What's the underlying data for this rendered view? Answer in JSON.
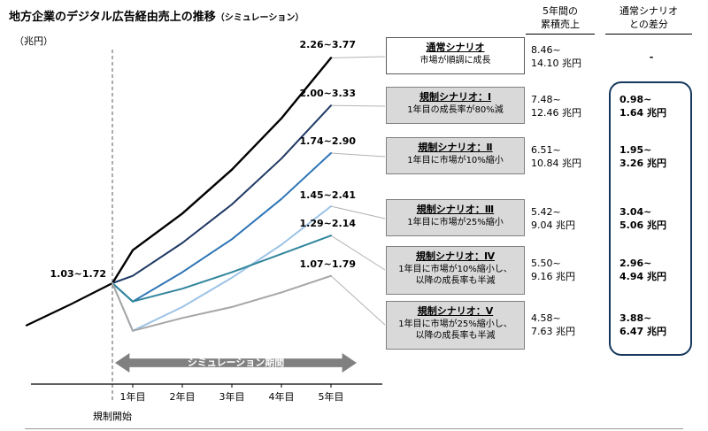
{
  "title": {
    "main": "地方企業のデジタル広告経由売上の推移",
    "sub": "（シミュレーション）"
  },
  "unit_label": "（兆円）",
  "x_axis": {
    "year_labels": [
      "1年目",
      "2年目",
      "3年目",
      "4年目",
      "5年目"
    ],
    "regulation_start_label": "規制開始"
  },
  "simulation_period_label": "シミュレーション期間",
  "table_headers": {
    "cumulative_line1": "5年間の",
    "cumulative_line2": "累積売上",
    "difference_line1": "通常シナリオ",
    "difference_line2": "との差分"
  },
  "chart_data": {
    "type": "line",
    "title": "地方企業のデジタル広告経由売上の推移（シミュレーション）",
    "ylabel": "兆円",
    "x_categories": [
      "規制開始",
      "1年目",
      "2年目",
      "3年目",
      "4年目",
      "5年目"
    ],
    "grid": false,
    "legend_position": "right-callout-boxes",
    "start_label": "1.03~1.72",
    "pre_history_values": [
      0.8,
      0.91,
      1.03
    ],
    "accent_frame_color": "#17375E",
    "series": [
      {
        "name": "通常シナリオ",
        "desc1": "市場が順調に成長",
        "end_label": "2.26~3.77",
        "cumulative_line1": "8.46~",
        "cumulative_line2": "14.10 兆円",
        "difference_line1": "-",
        "color": "#000000",
        "values_low": [
          1.03,
          1.21,
          1.41,
          1.65,
          1.93,
          2.26
        ]
      },
      {
        "name": "規制シナリオ：Ⅰ",
        "desc1": "1年目の成長率が80%減",
        "end_label": "2.00~3.33",
        "cumulative_line1": "7.48~",
        "cumulative_line2": "12.46 兆円",
        "difference_line1": "0.98~",
        "difference_line2": "1.64 兆円",
        "color": "#1F3864",
        "values_low": [
          1.03,
          1.07,
          1.25,
          1.46,
          1.71,
          2.0
        ]
      },
      {
        "name": "規制シナリオ：Ⅱ",
        "desc1": "1年目に市場が10%縮小",
        "end_label": "1.74~2.90",
        "cumulative_line1": "6.51~",
        "cumulative_line2": "10.84 兆円",
        "difference_line1": "1.95~",
        "difference_line2": "3.26 兆円",
        "color": "#2E74B5",
        "values_low": [
          1.03,
          0.93,
          1.09,
          1.27,
          1.49,
          1.74
        ]
      },
      {
        "name": "規制シナリオ：Ⅲ",
        "desc1": "1年目に市場が25%縮小",
        "end_label": "1.45~2.41",
        "cumulative_line1": "5.42~",
        "cumulative_line2": "9.04 兆円",
        "difference_line1": "3.04~",
        "difference_line2": "5.06 兆円",
        "color": "#9DC3E6",
        "values_low": [
          1.03,
          0.77,
          0.9,
          1.06,
          1.24,
          1.45
        ]
      },
      {
        "name": "規制シナリオ：Ⅳ",
        "desc1": "1年目に市場が10%縮小し、",
        "desc2": "以降の成長率も半減",
        "end_label": "1.29~2.14",
        "cumulative_line1": "5.50~",
        "cumulative_line2": "9.16 兆円",
        "difference_line1": "2.96~",
        "difference_line2": "4.94 兆円",
        "color": "#31859C",
        "values_low": [
          1.03,
          0.93,
          1.0,
          1.09,
          1.19,
          1.29
        ]
      },
      {
        "name": "規制シナリオ：Ⅴ",
        "desc1": "1年目に市場が25%縮小し、",
        "desc2": "以降の成長率も半減",
        "end_label": "1.07~1.79",
        "cumulative_line1": "4.58~",
        "cumulative_line2": "7.63 兆円",
        "difference_line1": "3.88~",
        "difference_line2": "6.47 兆円",
        "color": "#A6A6A6",
        "values_low": [
          1.03,
          0.77,
          0.84,
          0.9,
          0.98,
          1.07
        ]
      }
    ]
  }
}
